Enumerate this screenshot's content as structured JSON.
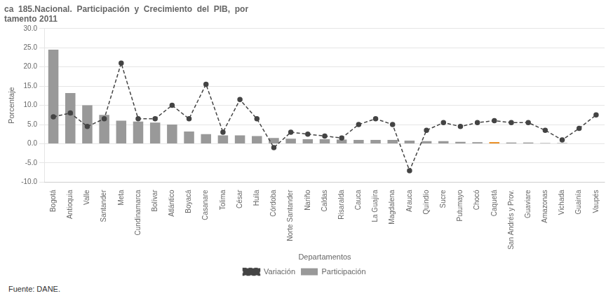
{
  "chart_data": {
    "type": "bar",
    "title": [
      "ca  185.Nacional.  Participación  y  Crecimiento  del  PIB,  por",
      "tamento 2011"
    ],
    "xlabel": "Departamentos",
    "ylabel": "Porcentaje",
    "annotations": [
      "Fuente: DANE."
    ],
    "categories": [
      "Bogotá",
      "Antioquia",
      "Valle",
      "Santander",
      "Meta",
      "Cundinamarca",
      "Bolívar",
      "Atlántico",
      "Boyacá",
      "Casanare",
      "Tolima",
      "César",
      "Huila",
      "Córdoba",
      "Norte Santander",
      "Nariño",
      "Caldas",
      "Risaralda",
      "Cauca",
      "La Guajira",
      "Magdalena",
      "Arauca",
      "Quindío",
      "Sucre",
      "Putumayo",
      "Chocó",
      "Caquetá",
      "San Andrés y Prov.",
      "Guaviare",
      "Amazonas",
      "Vichada",
      "Guainía",
      "Vaupés"
    ],
    "series": [
      {
        "name": "Participación",
        "type": "bar",
        "colors": [
          "#999999",
          "#999999",
          "#999999",
          "#999999",
          "#999999",
          "#999999",
          "#999999",
          "#999999",
          "#999999",
          "#999999",
          "#999999",
          "#999999",
          "#999999",
          "#999999",
          "#999999",
          "#999999",
          "#999999",
          "#999999",
          "#999999",
          "#999999",
          "#999999",
          "#999999",
          "#999999",
          "#999999",
          "#999999",
          "#999999",
          "#E8820A",
          "#999999",
          "#999999",
          "#999999",
          "#999999",
          "#999999",
          "#999999"
        ],
        "values": [
          24.5,
          13.2,
          10.0,
          7.5,
          6.0,
          5.8,
          5.5,
          5.0,
          3.2,
          2.5,
          2.2,
          2.2,
          2.0,
          1.5,
          1.3,
          1.2,
          1.2,
          1.1,
          1.0,
          1.0,
          1.0,
          0.8,
          0.7,
          0.7,
          0.5,
          0.4,
          0.4,
          0.3,
          0.3,
          0.2,
          0.2,
          0.1,
          0.1
        ]
      },
      {
        "name": "Variación",
        "type": "line",
        "color": "#444444",
        "line_style": "dashed",
        "marker": "circle",
        "values": [
          7.0,
          8.0,
          4.5,
          6.5,
          21.0,
          6.5,
          6.5,
          10.0,
          6.5,
          15.5,
          3.0,
          11.5,
          6.5,
          -1.0,
          3.0,
          2.5,
          2.0,
          1.5,
          5.0,
          6.5,
          5.0,
          -7.0,
          3.5,
          5.5,
          4.5,
          5.5,
          6.0,
          5.5,
          5.5,
          3.5,
          1.0,
          4.0,
          7.5
        ]
      }
    ],
    "ylim": [
      -10.0,
      30.0
    ],
    "yticks": [
      {
        "value": -10.0,
        "label": "-10.0"
      },
      {
        "value": -5.0,
        "label": "-5.0"
      },
      {
        "value": 0.0,
        "label": "0.0"
      },
      {
        "value": 5.0,
        "label": "5.0"
      },
      {
        "value": 10.0,
        "label": "10.0"
      },
      {
        "value": 15.0,
        "label": "15.0"
      },
      {
        "value": 20.0,
        "label": "20.0"
      },
      {
        "value": 25.0,
        "label": "25.0"
      },
      {
        "value": 30.0,
        "label": "30.0"
      }
    ],
    "grid": true,
    "legend": "bottom"
  }
}
